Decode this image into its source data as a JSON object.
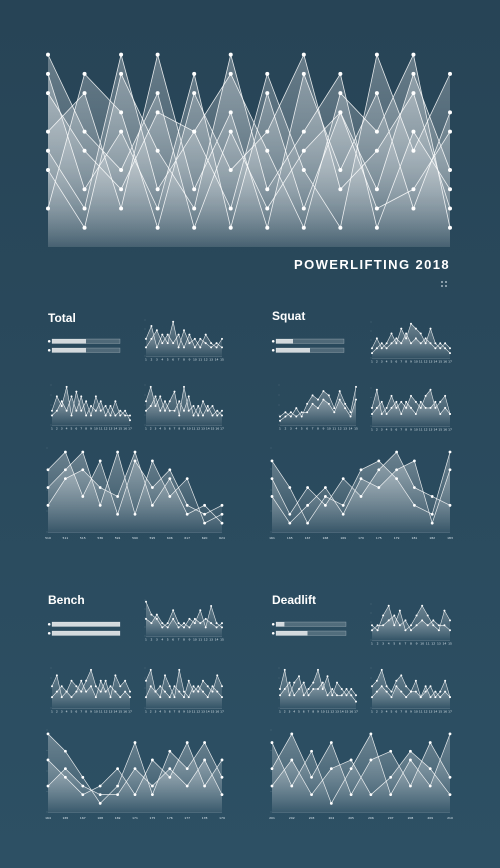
{
  "page_title": "POWERLIFTING 2018",
  "colors": {
    "background": "#2a4a5d",
    "ink": "#ffffff"
  },
  "sections": [
    {
      "name": "Total"
    },
    {
      "name": "Squat"
    },
    {
      "name": "Bench"
    },
    {
      "name": "Deadlift"
    }
  ],
  "chart_data": [
    {
      "id": "hero",
      "type": "area",
      "grid": false,
      "series": [
        {
          "values": [
            9,
            3,
            6,
            2,
            9,
            1,
            8,
            2,
            7,
            3,
            9,
            4
          ]
        },
        {
          "values": [
            6,
            8,
            2,
            10,
            3,
            7,
            1,
            9,
            4,
            8,
            2,
            7
          ]
        },
        {
          "values": [
            4,
            1,
            9,
            5,
            2,
            10,
            3,
            6,
            9,
            1,
            6,
            3
          ]
        },
        {
          "values": [
            8,
            5,
            3,
            7,
            6,
            2,
            9,
            4,
            1,
            10,
            5,
            9
          ]
        },
        {
          "values": [
            2,
            9,
            7,
            1,
            8,
            4,
            6,
            10,
            3,
            5,
            8,
            2
          ]
        },
        {
          "values": [
            10,
            6,
            4,
            8,
            1,
            6,
            2,
            5,
            7,
            2,
            3,
            6
          ]
        },
        {
          "values": [
            5,
            2,
            10,
            3,
            6,
            9,
            5,
            1,
            8,
            6,
            10,
            1
          ]
        }
      ]
    },
    {
      "id": "total-small-a",
      "type": "area",
      "x": [
        "1",
        "2",
        "3",
        "4",
        "5",
        "6",
        "7",
        "8",
        "9",
        "10",
        "11",
        "12",
        "13",
        "14",
        "15",
        "16",
        "17"
      ],
      "series": [
        {
          "values": [
            3,
            6,
            4,
            8,
            2,
            7,
            3,
            5,
            2,
            6,
            3,
            4,
            2,
            5,
            2,
            3,
            1
          ]
        },
        {
          "values": [
            2,
            3,
            5,
            3,
            6,
            3,
            6,
            2,
            4,
            3,
            5,
            2,
            4,
            2,
            3,
            2,
            2
          ]
        }
      ]
    },
    {
      "id": "total-small-b",
      "type": "area",
      "x": [
        "1",
        "2",
        "3",
        "4",
        "5",
        "6",
        "7",
        "8",
        "9",
        "10",
        "11",
        "12",
        "13",
        "14",
        "15"
      ],
      "series": [
        {
          "values": [
            4,
            7,
            2,
            5,
            3,
            8,
            2,
            6,
            3,
            4,
            2,
            5,
            3,
            2,
            4
          ]
        },
        {
          "values": [
            2,
            4,
            6,
            3,
            5,
            3,
            5,
            2,
            5,
            2,
            4,
            3,
            2,
            3,
            2
          ]
        }
      ]
    },
    {
      "id": "total-small-c",
      "type": "area",
      "x": [
        "1",
        "2",
        "3",
        "4",
        "5",
        "6",
        "7",
        "8",
        "9",
        "10",
        "11",
        "12",
        "13",
        "14",
        "15",
        "16",
        "17"
      ],
      "series": [
        {
          "values": [
            5,
            8,
            4,
            6,
            3,
            5,
            7,
            2,
            8,
            3,
            4,
            2,
            5,
            3,
            4,
            2,
            3
          ]
        },
        {
          "values": [
            3,
            4,
            6,
            3,
            5,
            3,
            3,
            5,
            3,
            6,
            2,
            4,
            2,
            4,
            2,
            3,
            2
          ]
        }
      ]
    },
    {
      "id": "total-large",
      "type": "area",
      "x": [
        "510",
        "511",
        "515",
        "536",
        "591",
        "590",
        "595",
        "606",
        "617",
        "620",
        "624"
      ],
      "series": [
        {
          "values": [
            7,
            9,
            4,
            8,
            2,
            8,
            5,
            7,
            3,
            2,
            3
          ]
        },
        {
          "values": [
            5,
            7,
            9,
            3,
            9,
            2,
            8,
            4,
            6,
            1,
            2
          ]
        },
        {
          "values": [
            3,
            6,
            7,
            5,
            4,
            9,
            3,
            6,
            2,
            3,
            1
          ]
        }
      ]
    },
    {
      "id": "squat-small-a",
      "type": "area",
      "x": [
        "1",
        "2",
        "3",
        "4",
        "5",
        "6",
        "7",
        "8",
        "9",
        "10",
        "11",
        "12",
        "13",
        "14",
        "15"
      ],
      "series": [
        {
          "values": [
            2,
            3,
            2,
            4,
            2,
            5,
            7,
            6,
            8,
            7,
            4,
            8,
            5,
            3,
            9
          ]
        },
        {
          "values": [
            1,
            2,
            3,
            2,
            3,
            3,
            5,
            4,
            6,
            5,
            3,
            6,
            4,
            2,
            6
          ]
        }
      ]
    },
    {
      "id": "squat-small-b",
      "type": "area",
      "x": [
        "1",
        "2",
        "3",
        "4",
        "5",
        "6",
        "7",
        "8",
        "9",
        "10",
        "11",
        "12",
        "13",
        "14",
        "15",
        "16",
        "17"
      ],
      "series": [
        {
          "values": [
            2,
            4,
            2,
            3,
            5,
            3,
            6,
            4,
            7,
            6,
            5,
            3,
            6,
            3,
            2,
            3,
            2
          ]
        },
        {
          "values": [
            1,
            2,
            3,
            2,
            3,
            4,
            3,
            5,
            3,
            4,
            3,
            4,
            3,
            2,
            3,
            2,
            1
          ]
        }
      ]
    },
    {
      "id": "squat-small-c",
      "type": "area",
      "x": [
        "1",
        "2",
        "3",
        "4",
        "5",
        "6",
        "7",
        "8",
        "9",
        "10",
        "11",
        "12",
        "13",
        "14",
        "15",
        "16",
        "17"
      ],
      "series": [
        {
          "values": [
            3,
            6,
            2,
            3,
            5,
            3,
            4,
            3,
            5,
            4,
            3,
            5,
            6,
            3,
            4,
            5,
            2
          ]
        },
        {
          "values": [
            2,
            3,
            4,
            2,
            3,
            4,
            2,
            4,
            3,
            2,
            4,
            3,
            3,
            4,
            2,
            3,
            2
          ]
        }
      ]
    },
    {
      "id": "squat-large",
      "type": "area",
      "x": [
        "161",
        "165",
        "167",
        "168",
        "169",
        "170",
        "175",
        "179",
        "181",
        "182",
        "183"
      ],
      "series": [
        {
          "values": [
            8,
            5,
            1,
            4,
            3,
            7,
            8,
            6,
            3,
            2,
            9
          ]
        },
        {
          "values": [
            6,
            2,
            5,
            3,
            6,
            4,
            7,
            9,
            5,
            4,
            3
          ]
        },
        {
          "values": [
            4,
            1,
            3,
            5,
            2,
            6,
            5,
            7,
            8,
            1,
            7
          ]
        }
      ]
    },
    {
      "id": "bench-small-a",
      "type": "area",
      "x": [
        "1",
        "2",
        "3",
        "4",
        "5",
        "6",
        "7",
        "8",
        "9",
        "10",
        "11",
        "12",
        "13",
        "14",
        "15"
      ],
      "series": [
        {
          "values": [
            8,
            5,
            4,
            2,
            3,
            6,
            3,
            2,
            4,
            3,
            6,
            2,
            7,
            3,
            2
          ]
        },
        {
          "values": [
            4,
            3,
            5,
            3,
            2,
            4,
            2,
            3,
            2,
            4,
            3,
            4,
            3,
            2,
            3
          ]
        }
      ]
    },
    {
      "id": "bench-small-b",
      "type": "area",
      "x": [
        "1",
        "2",
        "3",
        "4",
        "5",
        "6",
        "7",
        "8",
        "9",
        "10",
        "11",
        "12",
        "13",
        "14",
        "15",
        "16",
        "17"
      ],
      "series": [
        {
          "values": [
            4,
            6,
            2,
            3,
            5,
            4,
            3,
            5,
            7,
            4,
            3,
            5,
            2,
            6,
            4,
            5,
            3
          ]
        },
        {
          "values": [
            2,
            3,
            4,
            3,
            2,
            3,
            5,
            3,
            4,
            2,
            5,
            3,
            4,
            3,
            2,
            3,
            2
          ]
        }
      ]
    },
    {
      "id": "bench-small-c",
      "type": "area",
      "x": [
        "1",
        "2",
        "3",
        "4",
        "5",
        "6",
        "7",
        "8",
        "9",
        "10",
        "11",
        "12",
        "13",
        "14",
        "15",
        "16",
        "17"
      ],
      "series": [
        {
          "values": [
            5,
            7,
            3,
            2,
            6,
            4,
            2,
            7,
            3,
            2,
            4,
            3,
            5,
            4,
            3,
            6,
            4
          ]
        },
        {
          "values": [
            2,
            4,
            3,
            4,
            3,
            2,
            4,
            3,
            2,
            5,
            3,
            4,
            3,
            2,
            4,
            3,
            2
          ]
        }
      ]
    },
    {
      "id": "bench-large",
      "type": "area",
      "x": [
        "164",
        "165",
        "167",
        "168",
        "169",
        "171",
        "175",
        "176",
        "177",
        "178",
        "179"
      ],
      "series": [
        {
          "values": [
            9,
            7,
            4,
            1,
            3,
            8,
            2,
            7,
            5,
            8,
            4
          ]
        },
        {
          "values": [
            6,
            4,
            2,
            3,
            5,
            2,
            6,
            4,
            8,
            3,
            6
          ]
        },
        {
          "values": [
            3,
            5,
            3,
            2,
            2,
            5,
            3,
            5,
            3,
            6,
            2
          ]
        }
      ]
    },
    {
      "id": "deadlift-small-a",
      "type": "area",
      "x": [
        "1",
        "2",
        "3",
        "4",
        "5",
        "6",
        "7",
        "8",
        "9",
        "10",
        "11",
        "12",
        "13",
        "14",
        "15"
      ],
      "series": [
        {
          "values": [
            3,
            2,
            5,
            7,
            3,
            6,
            2,
            3,
            5,
            7,
            5,
            3,
            2,
            6,
            4
          ]
        },
        {
          "values": [
            2,
            3,
            3,
            4,
            5,
            3,
            4,
            2,
            3,
            4,
            3,
            4,
            3,
            3,
            2
          ]
        }
      ]
    },
    {
      "id": "deadlift-small-b",
      "type": "area",
      "x": [
        "1",
        "2",
        "3",
        "4",
        "5",
        "6",
        "7",
        "8",
        "9",
        "10",
        "11",
        "12",
        "13",
        "14",
        "15",
        "16",
        "17"
      ],
      "series": [
        {
          "values": [
            3,
            6,
            2,
            4,
            5,
            2,
            3,
            4,
            6,
            3,
            5,
            2,
            4,
            3,
            2,
            3,
            2
          ]
        },
        {
          "values": [
            2,
            3,
            4,
            2,
            3,
            4,
            2,
            3,
            3,
            4,
            2,
            3,
            2,
            2,
            3,
            2,
            1
          ]
        }
      ]
    },
    {
      "id": "deadlift-small-c",
      "type": "area",
      "x": [
        "1",
        "2",
        "3",
        "4",
        "5",
        "6",
        "7",
        "8",
        "9",
        "10",
        "11",
        "12",
        "13",
        "14",
        "15",
        "16",
        "17"
      ],
      "series": [
        {
          "values": [
            4,
            5,
            7,
            4,
            3,
            5,
            6,
            4,
            3,
            5,
            2,
            3,
            4,
            2,
            3,
            5,
            2
          ]
        },
        {
          "values": [
            2,
            3,
            4,
            3,
            2,
            4,
            3,
            2,
            3,
            3,
            2,
            4,
            2,
            3,
            2,
            3,
            2
          ]
        }
      ]
    },
    {
      "id": "deadlift-large",
      "type": "area",
      "x": [
        "201",
        "202",
        "203",
        "204",
        "205",
        "206",
        "207",
        "208",
        "209",
        "210"
      ],
      "series": [
        {
          "values": [
            8,
            3,
            7,
            1,
            5,
            9,
            2,
            6,
            3,
            9
          ]
        },
        {
          "values": [
            5,
            9,
            4,
            8,
            2,
            6,
            7,
            3,
            8,
            4
          ]
        },
        {
          "values": [
            3,
            6,
            2,
            5,
            6,
            2,
            4,
            7,
            5,
            2
          ]
        }
      ]
    }
  ],
  "progress_bars": [
    {
      "id": "total",
      "bars": [
        0.5,
        0.5
      ]
    },
    {
      "id": "squat",
      "bars": [
        0.25,
        0.5
      ]
    },
    {
      "id": "bench",
      "bars": [
        1.0,
        1.0
      ]
    },
    {
      "id": "deadlift",
      "bars": [
        0.12,
        0.45
      ]
    }
  ]
}
